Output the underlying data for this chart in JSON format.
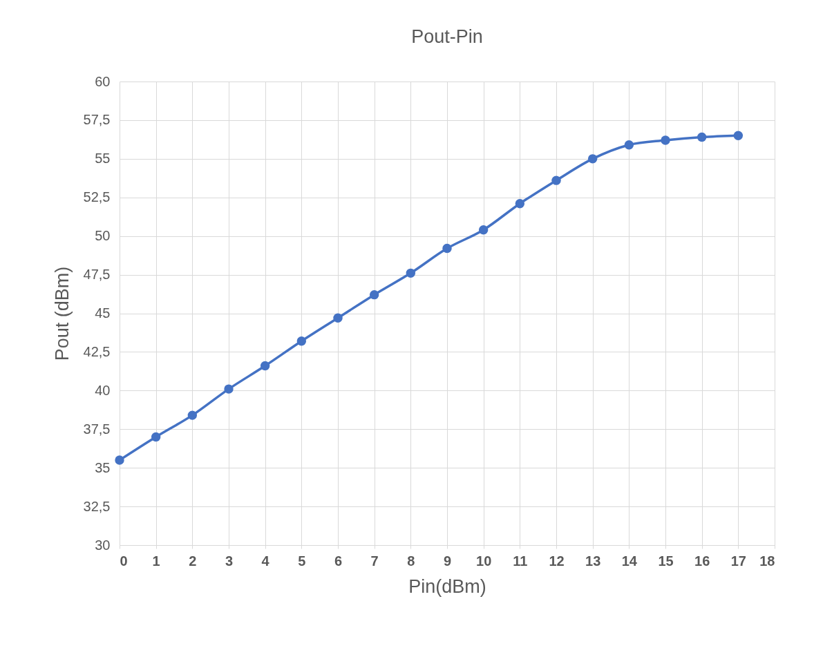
{
  "chart_data": {
    "type": "line",
    "title": "Pout-Pin",
    "xlabel": "Pin(dBm)",
    "ylabel": "Pout (dBm)",
    "x": [
      0,
      1,
      2,
      3,
      4,
      5,
      6,
      7,
      8,
      9,
      10,
      11,
      12,
      13,
      14,
      15,
      16,
      17
    ],
    "series": [
      {
        "color": "#4472c4",
        "values": [
          35.5,
          37.0,
          38.4,
          40.1,
          41.6,
          43.2,
          44.7,
          46.2,
          47.6,
          49.2,
          50.4,
          52.1,
          53.6,
          55.0,
          55.9,
          56.2,
          56.4,
          56.5
        ]
      }
    ],
    "xlim": [
      0,
      18
    ],
    "xticks": [
      0,
      1,
      2,
      3,
      4,
      5,
      6,
      7,
      8,
      9,
      10,
      11,
      12,
      13,
      14,
      15,
      16,
      17,
      18
    ],
    "ylim": [
      30,
      60
    ],
    "yticks": [
      30,
      {
        "value": 32.5,
        "label": "32,5"
      },
      35,
      {
        "value": 37.5,
        "label": "37,5"
      },
      40,
      {
        "value": 42.5,
        "label": "42,5"
      },
      45,
      {
        "value": 47.5,
        "label": "47,5"
      },
      50,
      {
        "value": 52.5,
        "label": "52,5"
      },
      55,
      {
        "value": 57.5,
        "label": "57,5"
      },
      60
    ],
    "grid": true,
    "marker": "circle",
    "line_style": "solid"
  }
}
